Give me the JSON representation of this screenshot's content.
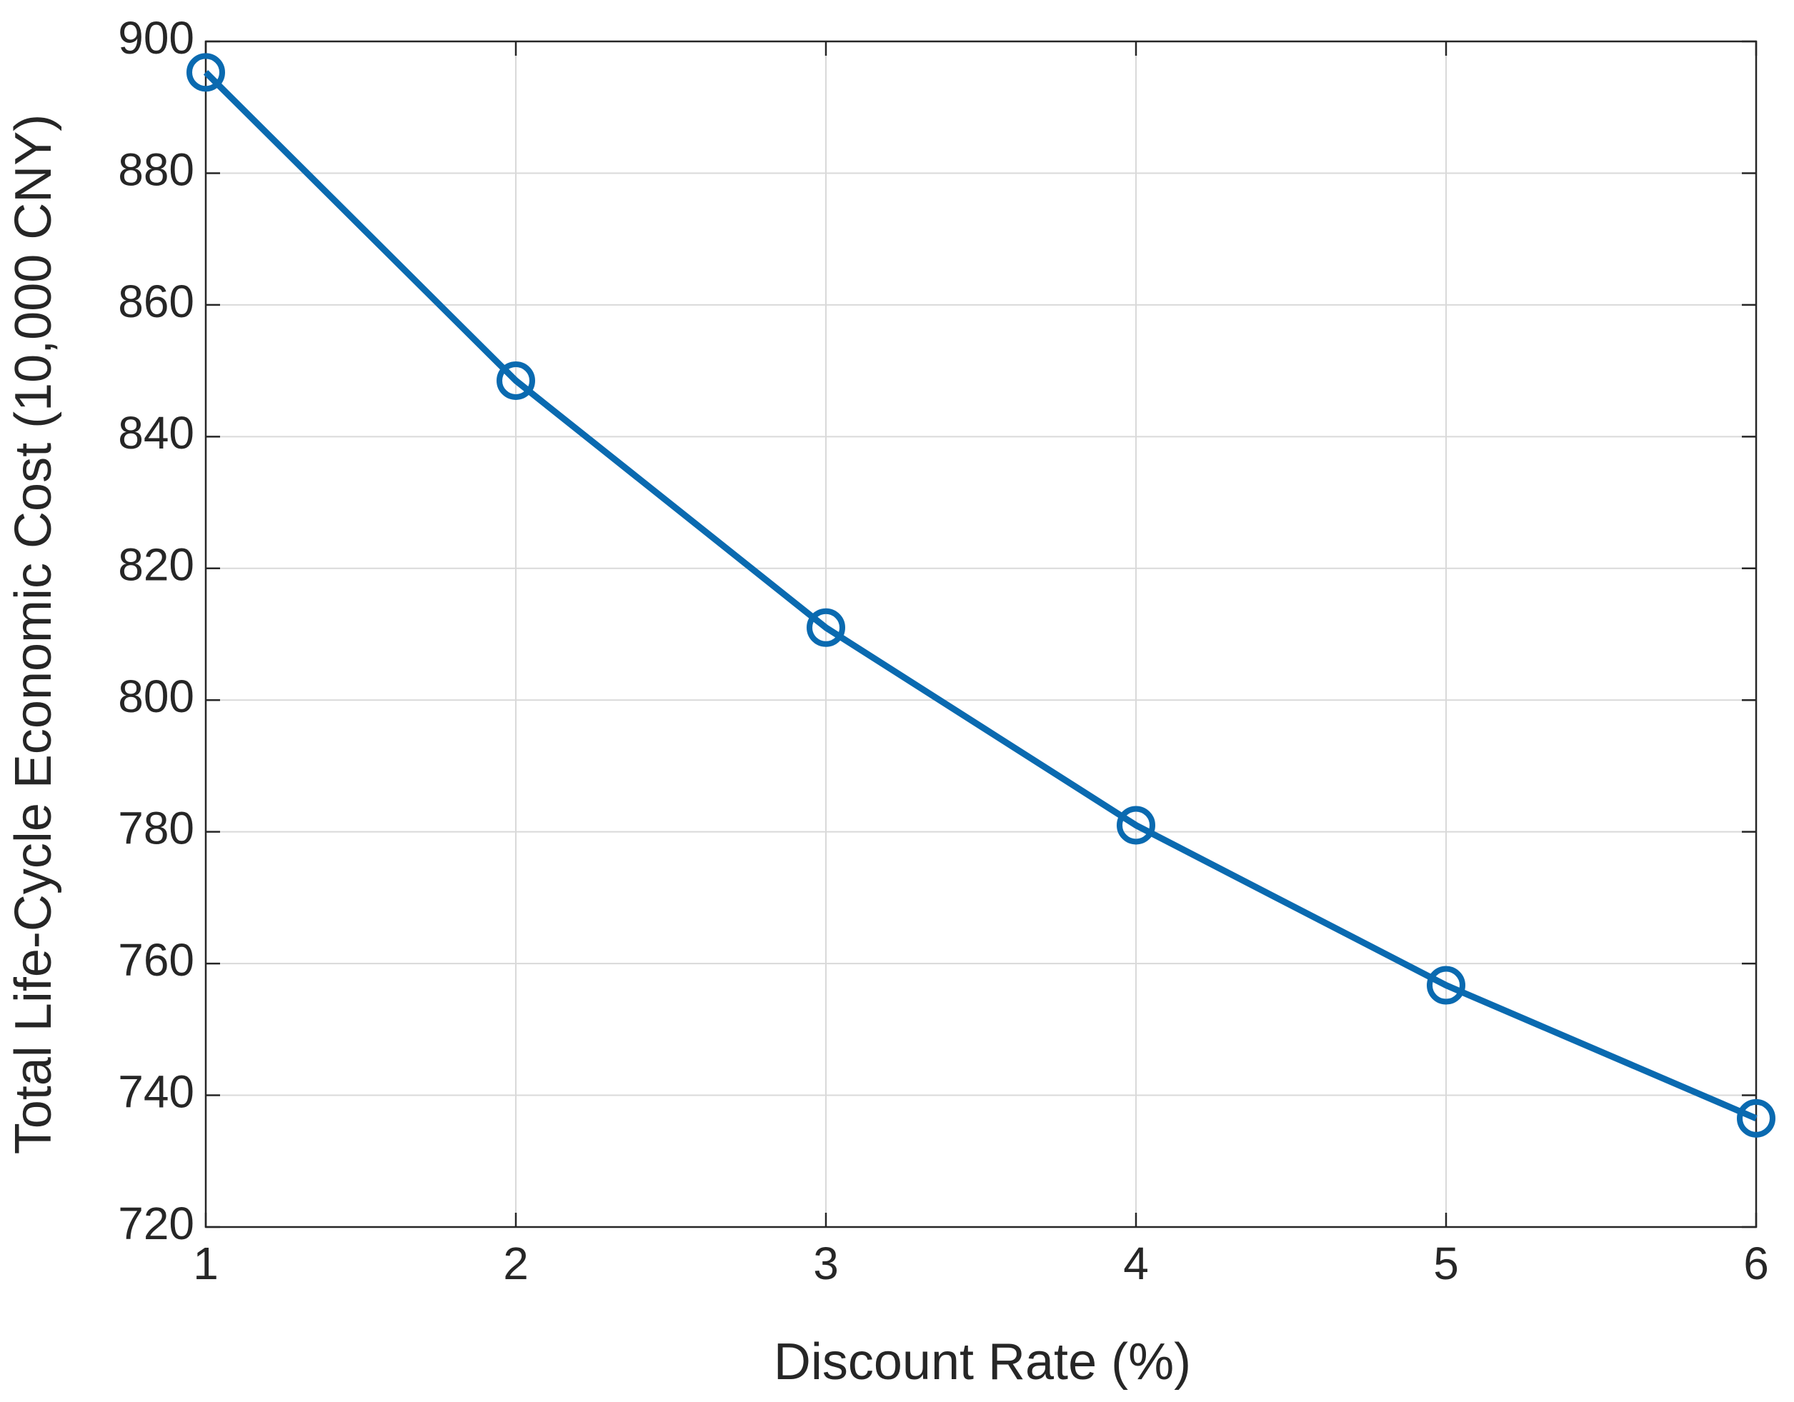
{
  "chart_data": {
    "type": "line",
    "xlabel": "Discount Rate (%)",
    "ylabel": "Total Life-Cycle Economic Cost (10,000 CNY)",
    "x": [
      1,
      2,
      3,
      4,
      5,
      6
    ],
    "series": [
      {
        "color": "#0a6ab0",
        "values": [
          895.3,
          848.5,
          811,
          781,
          756.7,
          736.5
        ]
      }
    ],
    "xlim": [
      1,
      6
    ],
    "xticks": [
      1,
      2,
      3,
      4,
      5,
      6
    ],
    "ylim": [
      720,
      900
    ],
    "yticks": [
      720,
      740,
      760,
      780,
      800,
      820,
      840,
      860,
      880,
      900
    ],
    "grid": true,
    "marker": "circle"
  }
}
